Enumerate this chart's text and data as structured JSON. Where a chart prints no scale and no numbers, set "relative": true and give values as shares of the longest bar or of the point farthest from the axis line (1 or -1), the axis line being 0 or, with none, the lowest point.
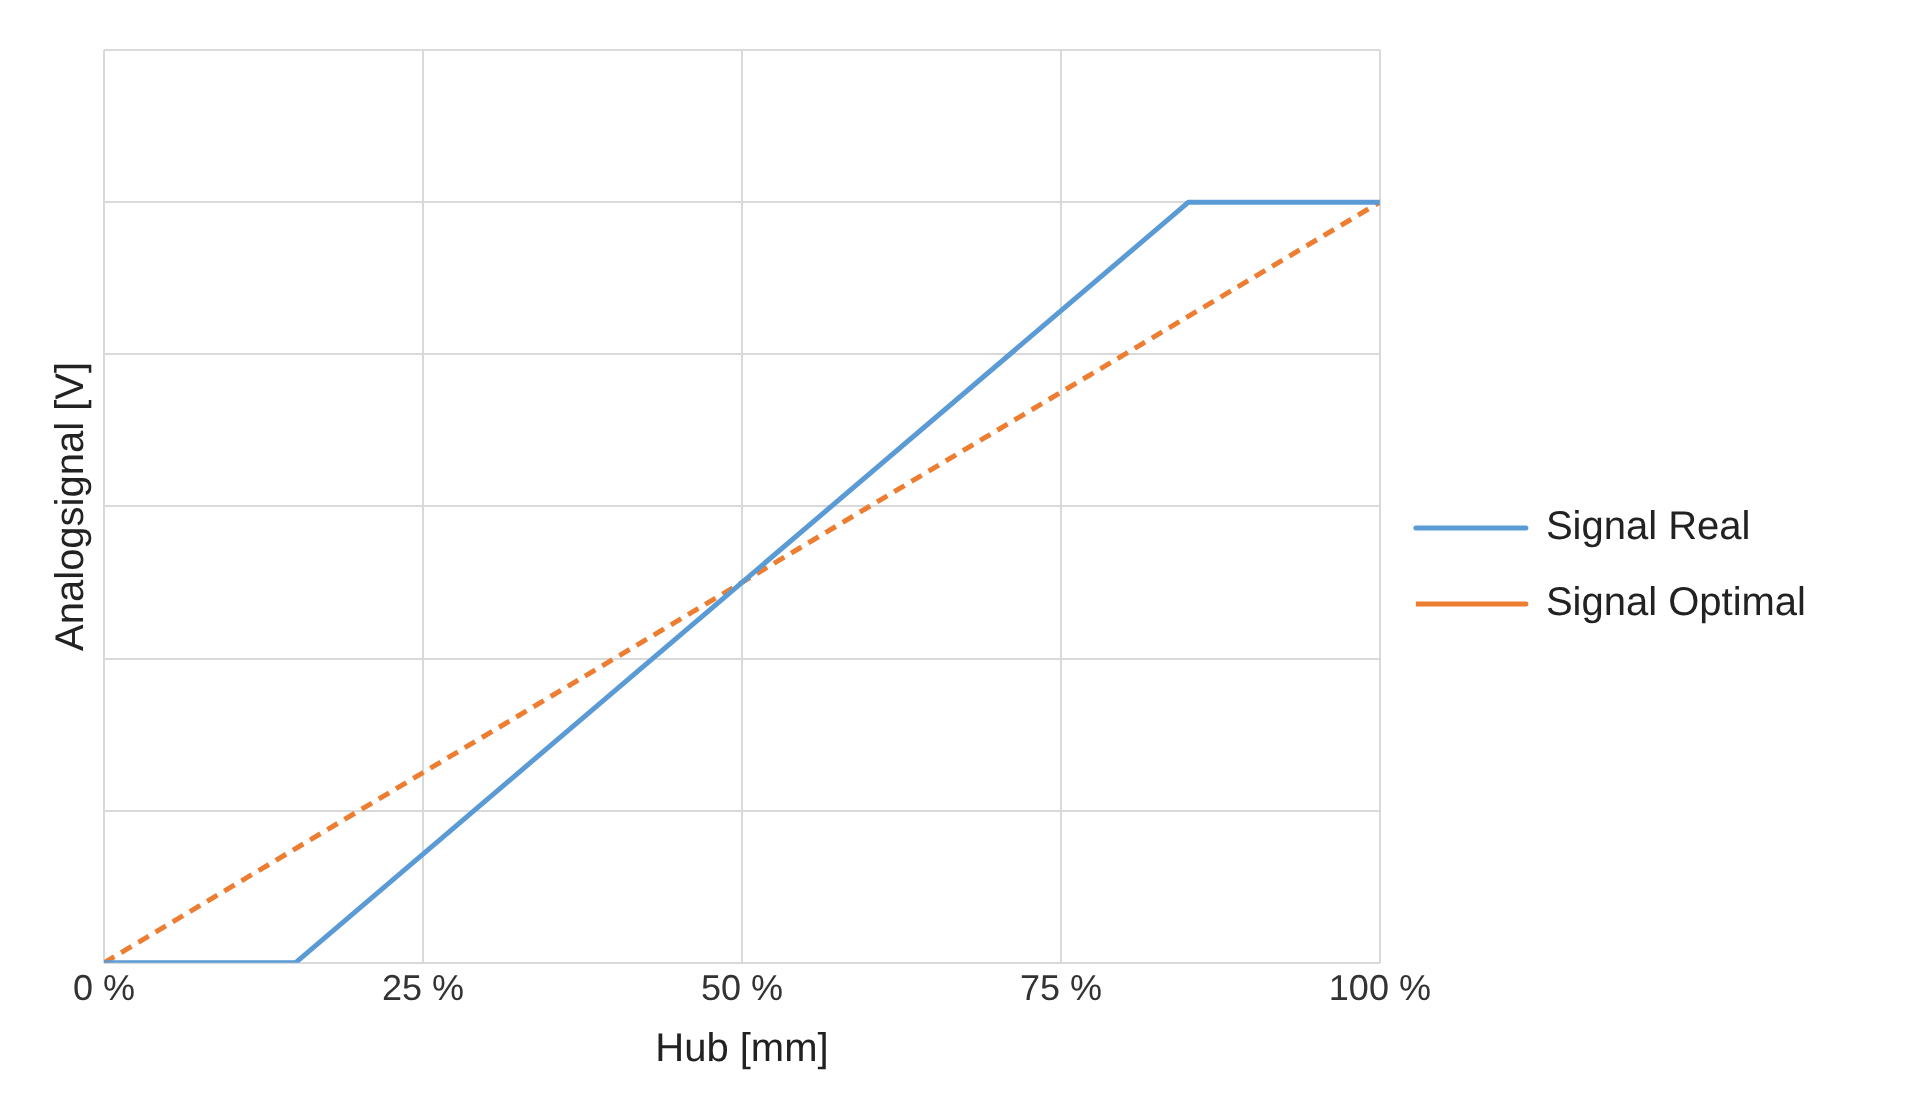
{
  "chart_data": {
    "type": "line",
    "xlabel": "Hub [mm]",
    "ylabel": "Analogsignal [V]",
    "relative": true,
    "xlim": [
      0,
      100
    ],
    "xticks": [
      {
        "value": 0,
        "label": "0 %"
      },
      {
        "value": 25,
        "label": "25 %"
      },
      {
        "value": 50,
        "label": "50 %"
      },
      {
        "value": 75,
        "label": "75 %"
      },
      {
        "value": 100,
        "label": "100 %"
      }
    ],
    "series": [
      {
        "name": "Signal Real",
        "color": "#5b9bd5",
        "x": [
          0,
          15,
          85,
          100
        ],
        "values": [
          0,
          0,
          1,
          1
        ],
        "line_style": "solid"
      },
      {
        "name": "Signal Optimal",
        "color": "#ed7d31",
        "x": [
          0,
          100
        ],
        "values": [
          0,
          1
        ],
        "line_style": "dashed"
      }
    ],
    "grid": true,
    "legend": "right",
    "marker": "none"
  }
}
